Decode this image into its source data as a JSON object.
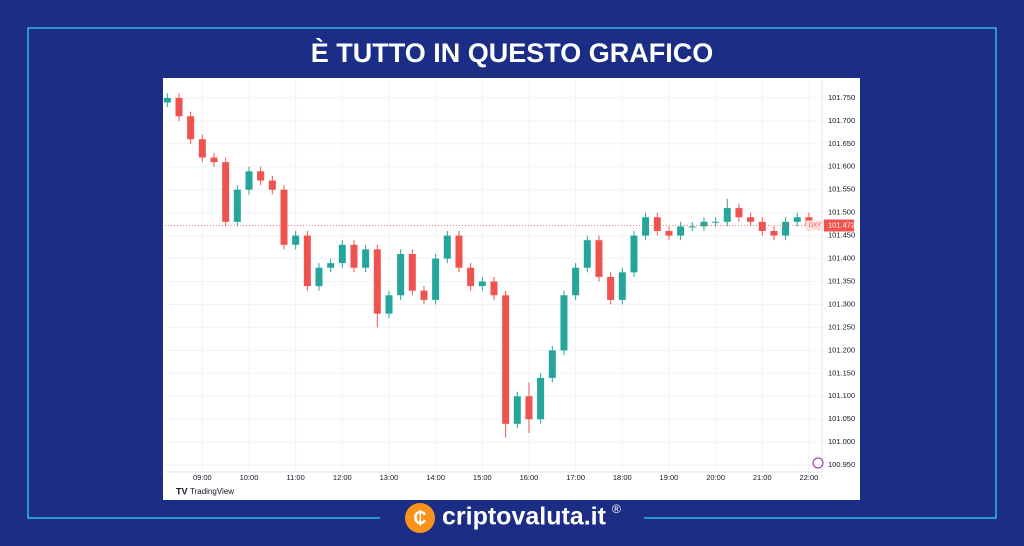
{
  "header": {
    "title": "È TUTTO IN QUESTO GRAFICO"
  },
  "chart_data": {
    "type": "candlestick",
    "x": [
      8.25,
      8.5,
      8.75,
      9,
      9.25,
      9.5,
      9.75,
      10,
      10.25,
      10.5,
      10.75,
      11,
      11.25,
      11.5,
      11.75,
      12,
      12.25,
      12.5,
      12.75,
      13,
      13.25,
      13.5,
      13.75,
      14,
      14.25,
      14.5,
      14.75,
      15,
      15.25,
      15.5,
      15.75,
      16,
      16.25,
      16.5,
      16.75,
      17,
      17.25,
      17.5,
      17.75,
      18,
      18.25,
      18.5,
      18.75,
      19,
      19.25,
      19.5,
      19.75,
      20,
      20.25,
      20.5,
      20.75,
      21,
      21.25,
      21.5,
      21.75,
      22
    ],
    "open": [
      101.74,
      101.75,
      101.71,
      101.66,
      101.62,
      101.61,
      101.48,
      101.55,
      101.59,
      101.57,
      101.55,
      101.43,
      101.45,
      101.34,
      101.38,
      101.39,
      101.43,
      101.38,
      101.42,
      101.28,
      101.32,
      101.41,
      101.33,
      101.31,
      101.4,
      101.45,
      101.38,
      101.34,
      101.35,
      101.32,
      101.04,
      101.1,
      101.05,
      101.14,
      101.2,
      101.32,
      101.38,
      101.44,
      101.36,
      101.31,
      101.37,
      101.45,
      101.49,
      101.46,
      101.45,
      101.47,
      101.47,
      101.48,
      101.48,
      101.51,
      101.49,
      101.48,
      101.46,
      101.45,
      101.48,
      101.49
    ],
    "high": [
      101.76,
      101.76,
      101.72,
      101.67,
      101.63,
      101.62,
      101.56,
      101.6,
      101.6,
      101.58,
      101.56,
      101.46,
      101.46,
      101.39,
      101.4,
      101.44,
      101.44,
      101.43,
      101.43,
      101.33,
      101.42,
      101.42,
      101.34,
      101.41,
      101.46,
      101.46,
      101.39,
      101.36,
      101.36,
      101.33,
      101.11,
      101.13,
      101.15,
      101.21,
      101.33,
      101.39,
      101.45,
      101.45,
      101.37,
      101.38,
      101.46,
      101.5,
      101.5,
      101.47,
      101.48,
      101.48,
      101.49,
      101.49,
      101.53,
      101.52,
      101.5,
      101.49,
      101.47,
      101.49,
      101.5,
      101.5
    ],
    "low": [
      101.73,
      101.7,
      101.65,
      101.61,
      101.6,
      101.47,
      101.47,
      101.54,
      101.56,
      101.54,
      101.42,
      101.42,
      101.33,
      101.33,
      101.37,
      101.38,
      101.37,
      101.37,
      101.25,
      101.27,
      101.31,
      101.32,
      101.3,
      101.3,
      101.39,
      101.37,
      101.33,
      101.33,
      101.31,
      101.01,
      101.03,
      101.02,
      101.04,
      101.13,
      101.19,
      101.31,
      101.37,
      101.35,
      101.3,
      101.3,
      101.36,
      101.44,
      101.45,
      101.44,
      101.44,
      101.46,
      101.46,
      101.47,
      101.47,
      101.48,
      101.47,
      101.45,
      101.44,
      101.44,
      101.47,
      101.46
    ],
    "close": [
      101.75,
      101.71,
      101.66,
      101.62,
      101.61,
      101.48,
      101.55,
      101.59,
      101.57,
      101.55,
      101.43,
      101.45,
      101.34,
      101.38,
      101.39,
      101.43,
      101.38,
      101.42,
      101.28,
      101.32,
      101.41,
      101.33,
      101.31,
      101.4,
      101.45,
      101.38,
      101.34,
      101.35,
      101.32,
      101.04,
      101.1,
      101.05,
      101.14,
      101.2,
      101.32,
      101.38,
      101.44,
      101.36,
      101.31,
      101.37,
      101.45,
      101.49,
      101.46,
      101.45,
      101.47,
      101.47,
      101.48,
      101.48,
      101.51,
      101.49,
      101.48,
      101.46,
      101.45,
      101.48,
      101.49,
      101.47
    ],
    "up_color": "#26a69a",
    "down_color": "#ef5350",
    "xlim": [
      8.2,
      22.28
    ],
    "xticks": [
      {
        "value": 9,
        "label": "09:00"
      },
      {
        "value": 10,
        "label": "10:00"
      },
      {
        "value": 11,
        "label": "11:00"
      },
      {
        "value": 12,
        "label": "12:00"
      },
      {
        "value": 13,
        "label": "13:00"
      },
      {
        "value": 14,
        "label": "14:00"
      },
      {
        "value": 15,
        "label": "15:00"
      },
      {
        "value": 16,
        "label": "16:00"
      },
      {
        "value": 17,
        "label": "17:00"
      },
      {
        "value": 18,
        "label": "18:00"
      },
      {
        "value": 19,
        "label": "19:00"
      },
      {
        "value": 20,
        "label": "20:00"
      },
      {
        "value": 21,
        "label": "21:00"
      },
      {
        "value": 22,
        "label": "22:00"
      }
    ],
    "ylim": [
      100.935,
      101.789
    ],
    "yticks": [
      {
        "value": 100.95,
        "label": "100.950"
      },
      {
        "value": 101.0,
        "label": "101.000"
      },
      {
        "value": 101.05,
        "label": "101.050"
      },
      {
        "value": 101.1,
        "label": "101.100"
      },
      {
        "value": 101.15,
        "label": "101.150"
      },
      {
        "value": 101.2,
        "label": "101.200"
      },
      {
        "value": 101.25,
        "label": "101.250"
      },
      {
        "value": 101.3,
        "label": "101.300"
      },
      {
        "value": 101.35,
        "label": "101.350"
      },
      {
        "value": 101.4,
        "label": "101.400"
      },
      {
        "value": 101.45,
        "label": "101.450"
      },
      {
        "value": 101.5,
        "label": "101.500"
      },
      {
        "value": 101.55,
        "label": "101.550"
      },
      {
        "value": 101.6,
        "label": "101.600"
      },
      {
        "value": 101.65,
        "label": "101.650"
      },
      {
        "value": 101.7,
        "label": "101.700"
      },
      {
        "value": 101.75,
        "label": "101.750"
      }
    ],
    "grid": true,
    "last_price": {
      "value": 101.472,
      "label": "101.472",
      "symbol": "DXY"
    },
    "watermark": "TradingView"
  },
  "footer": {
    "brand": "criptovaluta.it",
    "mark": "®"
  }
}
